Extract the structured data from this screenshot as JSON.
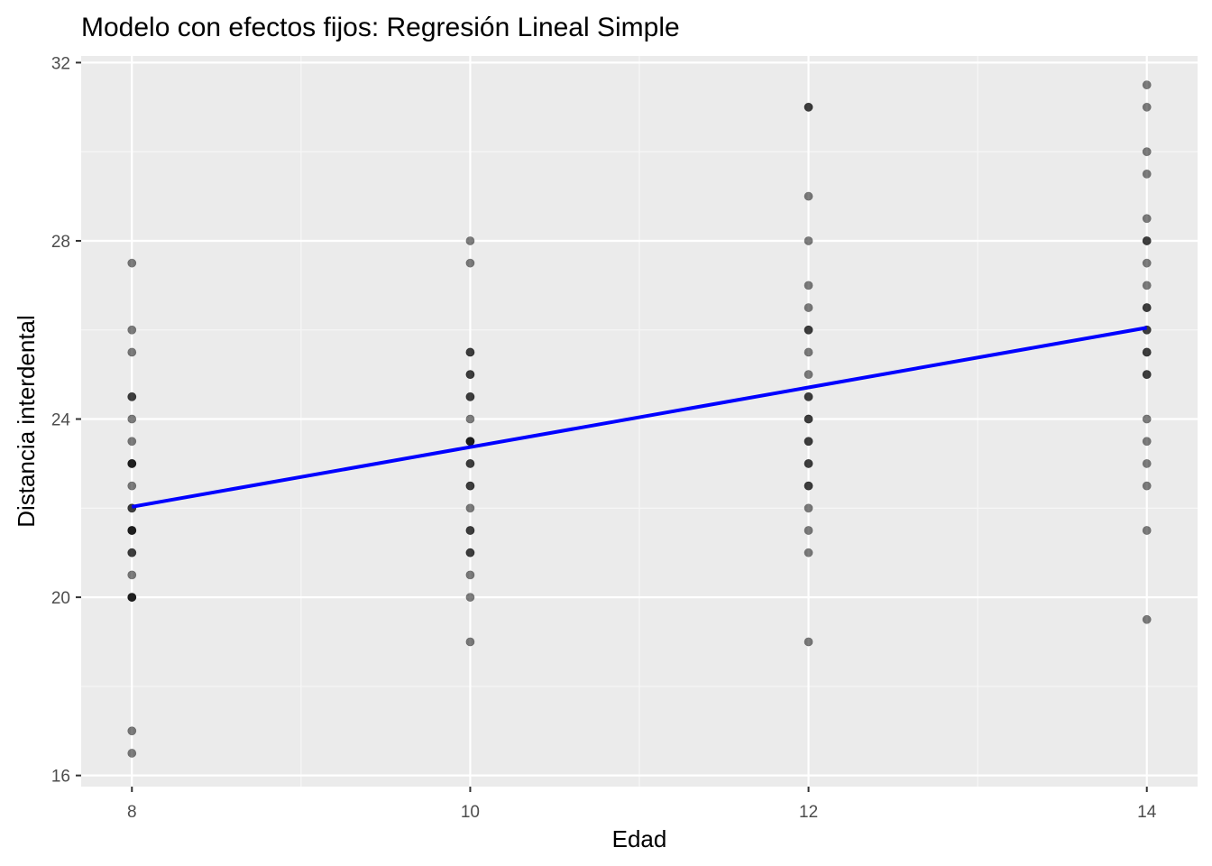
{
  "chart_data": {
    "type": "scatter",
    "title": "Modelo con efectos fijos: Regresión Lineal Simple",
    "xlabel": "Edad",
    "ylabel": "Distancia interdental",
    "xlim": [
      7.7,
      14.3
    ],
    "ylim": [
      15.75,
      32.15
    ],
    "x_ticks": [
      8,
      10,
      12,
      14
    ],
    "x_tick_labels": [
      "8",
      "10",
      "12",
      "14"
    ],
    "y_ticks": [
      16,
      20,
      24,
      28,
      32
    ],
    "y_tick_labels": [
      "16",
      "20",
      "24",
      "28",
      "32"
    ],
    "x_minor_ticks": [
      9,
      11,
      13
    ],
    "y_minor_ticks": [
      18,
      22,
      26,
      30
    ],
    "grid": true,
    "legend": "none",
    "points": [
      {
        "x": 8,
        "y": 27.5
      },
      {
        "x": 8,
        "y": 26
      },
      {
        "x": 8,
        "y": 25.5
      },
      {
        "x": 8,
        "y": 24.5
      },
      {
        "x": 8,
        "y": 24.5
      },
      {
        "x": 8,
        "y": 24
      },
      {
        "x": 8,
        "y": 23.5
      },
      {
        "x": 8,
        "y": 23
      },
      {
        "x": 8,
        "y": 23
      },
      {
        "x": 8,
        "y": 23
      },
      {
        "x": 8,
        "y": 22.5
      },
      {
        "x": 8,
        "y": 22
      },
      {
        "x": 8,
        "y": 22
      },
      {
        "x": 8,
        "y": 21.5
      },
      {
        "x": 8,
        "y": 21.5
      },
      {
        "x": 8,
        "y": 21.5
      },
      {
        "x": 8,
        "y": 21
      },
      {
        "x": 8,
        "y": 21
      },
      {
        "x": 8,
        "y": 20.5
      },
      {
        "x": 8,
        "y": 20
      },
      {
        "x": 8,
        "y": 20
      },
      {
        "x": 8,
        "y": 20
      },
      {
        "x": 8,
        "y": 17
      },
      {
        "x": 8,
        "y": 16.5
      },
      {
        "x": 10,
        "y": 28
      },
      {
        "x": 10,
        "y": 27.5
      },
      {
        "x": 10,
        "y": 25.5
      },
      {
        "x": 10,
        "y": 25.5
      },
      {
        "x": 10,
        "y": 25
      },
      {
        "x": 10,
        "y": 25
      },
      {
        "x": 10,
        "y": 24.5
      },
      {
        "x": 10,
        "y": 24.5
      },
      {
        "x": 10,
        "y": 24
      },
      {
        "x": 10,
        "y": 23.5
      },
      {
        "x": 10,
        "y": 23.5
      },
      {
        "x": 10,
        "y": 23.5
      },
      {
        "x": 10,
        "y": 23
      },
      {
        "x": 10,
        "y": 23
      },
      {
        "x": 10,
        "y": 22.5
      },
      {
        "x": 10,
        "y": 22.5
      },
      {
        "x": 10,
        "y": 22
      },
      {
        "x": 10,
        "y": 21.5
      },
      {
        "x": 10,
        "y": 21.5
      },
      {
        "x": 10,
        "y": 21
      },
      {
        "x": 10,
        "y": 21
      },
      {
        "x": 10,
        "y": 20.5
      },
      {
        "x": 10,
        "y": 20
      },
      {
        "x": 10,
        "y": 19
      },
      {
        "x": 12,
        "y": 31
      },
      {
        "x": 12,
        "y": 31
      },
      {
        "x": 12,
        "y": 29
      },
      {
        "x": 12,
        "y": 28
      },
      {
        "x": 12,
        "y": 27
      },
      {
        "x": 12,
        "y": 26.5
      },
      {
        "x": 12,
        "y": 26
      },
      {
        "x": 12,
        "y": 26
      },
      {
        "x": 12,
        "y": 25.5
      },
      {
        "x": 12,
        "y": 25
      },
      {
        "x": 12,
        "y": 24.5
      },
      {
        "x": 12,
        "y": 24.5
      },
      {
        "x": 12,
        "y": 24
      },
      {
        "x": 12,
        "y": 24
      },
      {
        "x": 12,
        "y": 23.5
      },
      {
        "x": 12,
        "y": 23.5
      },
      {
        "x": 12,
        "y": 23
      },
      {
        "x": 12,
        "y": 23
      },
      {
        "x": 12,
        "y": 22.5
      },
      {
        "x": 12,
        "y": 22.5
      },
      {
        "x": 12,
        "y": 22
      },
      {
        "x": 12,
        "y": 21.5
      },
      {
        "x": 12,
        "y": 21
      },
      {
        "x": 12,
        "y": 19
      },
      {
        "x": 14,
        "y": 31.5
      },
      {
        "x": 14,
        "y": 31
      },
      {
        "x": 14,
        "y": 30
      },
      {
        "x": 14,
        "y": 29.5
      },
      {
        "x": 14,
        "y": 28.5
      },
      {
        "x": 14,
        "y": 28
      },
      {
        "x": 14,
        "y": 28
      },
      {
        "x": 14,
        "y": 27.5
      },
      {
        "x": 14,
        "y": 27
      },
      {
        "x": 14,
        "y": 26.5
      },
      {
        "x": 14,
        "y": 26.5
      },
      {
        "x": 14,
        "y": 26
      },
      {
        "x": 14,
        "y": 26
      },
      {
        "x": 14,
        "y": 25.5
      },
      {
        "x": 14,
        "y": 25.5
      },
      {
        "x": 14,
        "y": 25
      },
      {
        "x": 14,
        "y": 25
      },
      {
        "x": 14,
        "y": 24
      },
      {
        "x": 14,
        "y": 23.5
      },
      {
        "x": 14,
        "y": 23
      },
      {
        "x": 14,
        "y": 22.5
      },
      {
        "x": 14,
        "y": 21.5
      },
      {
        "x": 14,
        "y": 19.5
      }
    ],
    "fit_line": {
      "x": [
        8,
        14
      ],
      "y": [
        22.03,
        26.05
      ]
    },
    "colors": {
      "panel_background": "#ebebeb",
      "grid_major": "#ffffff",
      "grid_minor": "#f7f7f7",
      "point_fill": "#000000",
      "point_opacity": 0.5,
      "fit_line": "#0000ff"
    }
  }
}
